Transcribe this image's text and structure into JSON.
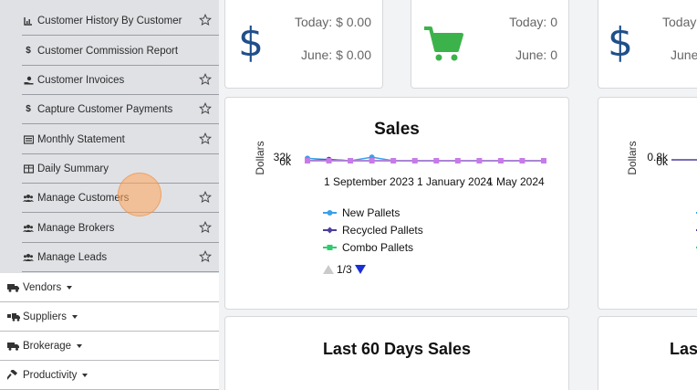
{
  "sidebar": {
    "sub_items": [
      {
        "label": "Customer History By Customer",
        "icon": "chart-icon"
      },
      {
        "label": "Customer Commission Report",
        "icon": "dollar-icon"
      },
      {
        "label": "Customer Invoices",
        "icon": "hand-coin-icon"
      },
      {
        "label": "Capture Customer Payments",
        "icon": "dollar-icon"
      },
      {
        "label": "Monthly Statement",
        "icon": "statement-icon"
      },
      {
        "label": "Daily Summary",
        "icon": "table-icon"
      },
      {
        "label": "Manage Customers",
        "icon": "users-icon"
      },
      {
        "label": "Manage Brokers",
        "icon": "users-icon"
      },
      {
        "label": "Manage Leads",
        "icon": "users-icon"
      }
    ],
    "top_items": [
      {
        "label": "Vendors",
        "icon": "truck-icon"
      },
      {
        "label": "Suppliers",
        "icon": "truck-loading-icon"
      },
      {
        "label": "Brokerage",
        "icon": "truck-icon"
      },
      {
        "label": "Productivity",
        "icon": "hammer-icon"
      }
    ]
  },
  "stats": {
    "card1": {
      "today": "Today: $ 0.00",
      "month": "June: $ 0.00",
      "icon": "dollar-icon"
    },
    "card2": {
      "today": "Today: 0",
      "month": "June: 0",
      "icon": "cart-icon"
    },
    "card3": {
      "today": "Today",
      "month": "June",
      "icon": "dollar-icon"
    }
  },
  "sales_card": {
    "title": "Sales",
    "ylabel": "Dollars",
    "legend_page": "1/3"
  },
  "sales_card_right": {
    "ylabel": "Dollars"
  },
  "last60": {
    "title": "Last 60 Days Sales",
    "title_right": "Las"
  },
  "chart_data": [
    {
      "type": "line",
      "title": "Sales",
      "ylabel": "Dollars",
      "y_ticks": [
        "32k",
        "0k"
      ],
      "x_ticks": [
        "1 September 2023",
        "1 January 2024",
        "1 May 2024"
      ],
      "series": [
        {
          "name": "New Pallets",
          "color": "#3aa0e8",
          "values": [
            2,
            1,
            0,
            3,
            0,
            0,
            0,
            0,
            0,
            0,
            0,
            0
          ]
        },
        {
          "name": "Recycled Pallets",
          "color": "#4a3f9e",
          "values": [
            0,
            1,
            0,
            0,
            0,
            0,
            0,
            0,
            0,
            0,
            0,
            0
          ]
        },
        {
          "name": "Combo Pallets",
          "color": "#2ecc71",
          "values": [
            0,
            0,
            0,
            0,
            0,
            0,
            0,
            0,
            0,
            0,
            0,
            0
          ]
        },
        {
          "name": "",
          "color": "#c77ae8",
          "values": [
            0,
            0,
            0,
            0,
            0,
            0,
            0,
            0,
            0,
            0,
            0,
            0
          ]
        }
      ]
    },
    {
      "type": "line",
      "ylabel": "Dollars",
      "y_ticks": [
        "0.8k",
        "0k"
      ]
    }
  ]
}
